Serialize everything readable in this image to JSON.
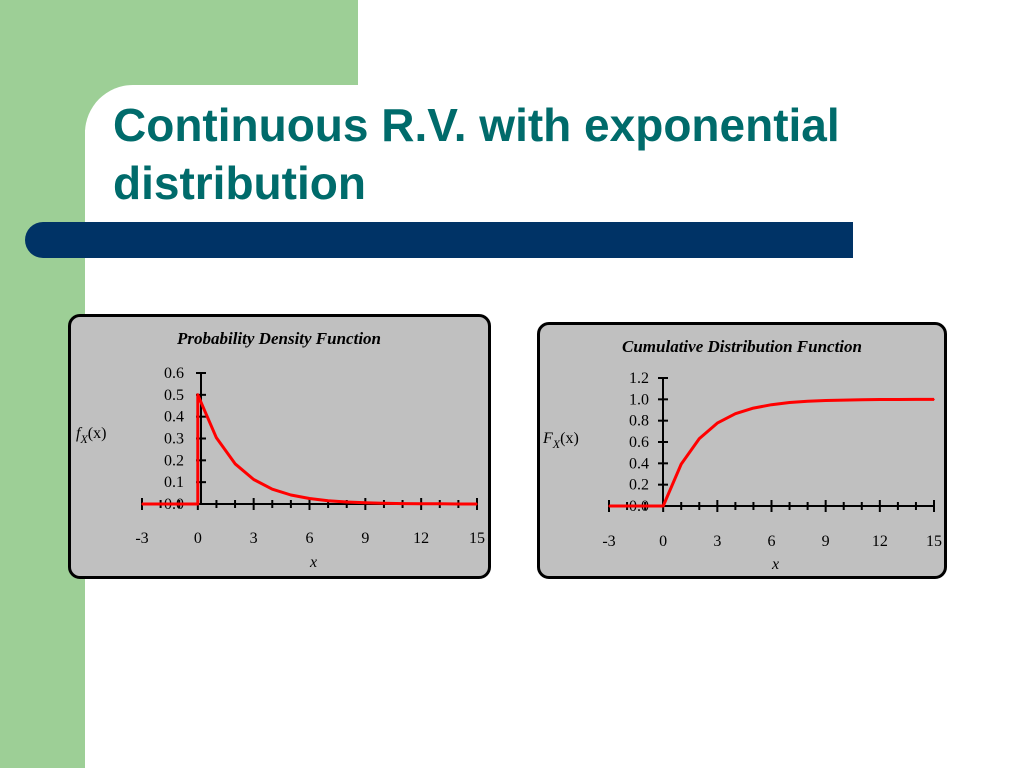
{
  "slide": {
    "title": "Continuous R.V. with exponential distribution"
  },
  "colors": {
    "accent_green": "#9dcf96",
    "title_teal": "#006b6b",
    "bar_navy": "#003366",
    "panel_gray": "#c0c0c0",
    "curve_red": "#ff0000"
  },
  "chart_data": [
    {
      "type": "line",
      "title": "Probability Density Function",
      "xlabel": "x",
      "ylabel_main": "f",
      "ylabel_sub": "X",
      "ylabel_arg": "(x)",
      "xlim": [
        -3,
        15
      ],
      "ylim": [
        0,
        0.6
      ],
      "xticks": [
        "-3",
        "0",
        "3",
        "6",
        "9",
        "12",
        "15"
      ],
      "yticks": [
        "0.0",
        "0.1",
        "0.2",
        "0.3",
        "0.4",
        "0.5",
        "0.6"
      ],
      "series": [
        {
          "x": [
            -3,
            0,
            0,
            1,
            2,
            3,
            4,
            5,
            6,
            7,
            8,
            9,
            10,
            11,
            12,
            13,
            14,
            15
          ],
          "values": [
            0,
            0,
            0.5,
            0.303,
            0.184,
            0.112,
            0.068,
            0.041,
            0.025,
            0.015,
            0.009,
            0.006,
            0.003,
            0.002,
            0.001,
            0.001,
            0.0,
            0.0
          ]
        }
      ],
      "grid": false
    },
    {
      "type": "line",
      "title": "Cumulative Distribution Function",
      "xlabel": "x",
      "ylabel_main": "F",
      "ylabel_sub": "X",
      "ylabel_arg": "(x)",
      "xlim": [
        -3,
        15
      ],
      "ylim": [
        0,
        1.2
      ],
      "xticks": [
        "-3",
        "0",
        "3",
        "6",
        "9",
        "12",
        "15"
      ],
      "yticks": [
        "0.0",
        "0.2",
        "0.4",
        "0.6",
        "0.8",
        "1.0",
        "1.2"
      ],
      "series": [
        {
          "x": [
            -3,
            0,
            1,
            2,
            3,
            4,
            5,
            6,
            7,
            8,
            9,
            10,
            11,
            12,
            13,
            14,
            15
          ],
          "values": [
            0,
            0,
            0.393,
            0.632,
            0.777,
            0.865,
            0.918,
            0.95,
            0.97,
            0.982,
            0.989,
            0.993,
            0.996,
            0.998,
            0.998,
            0.999,
            0.999
          ]
        }
      ],
      "grid": false
    }
  ]
}
